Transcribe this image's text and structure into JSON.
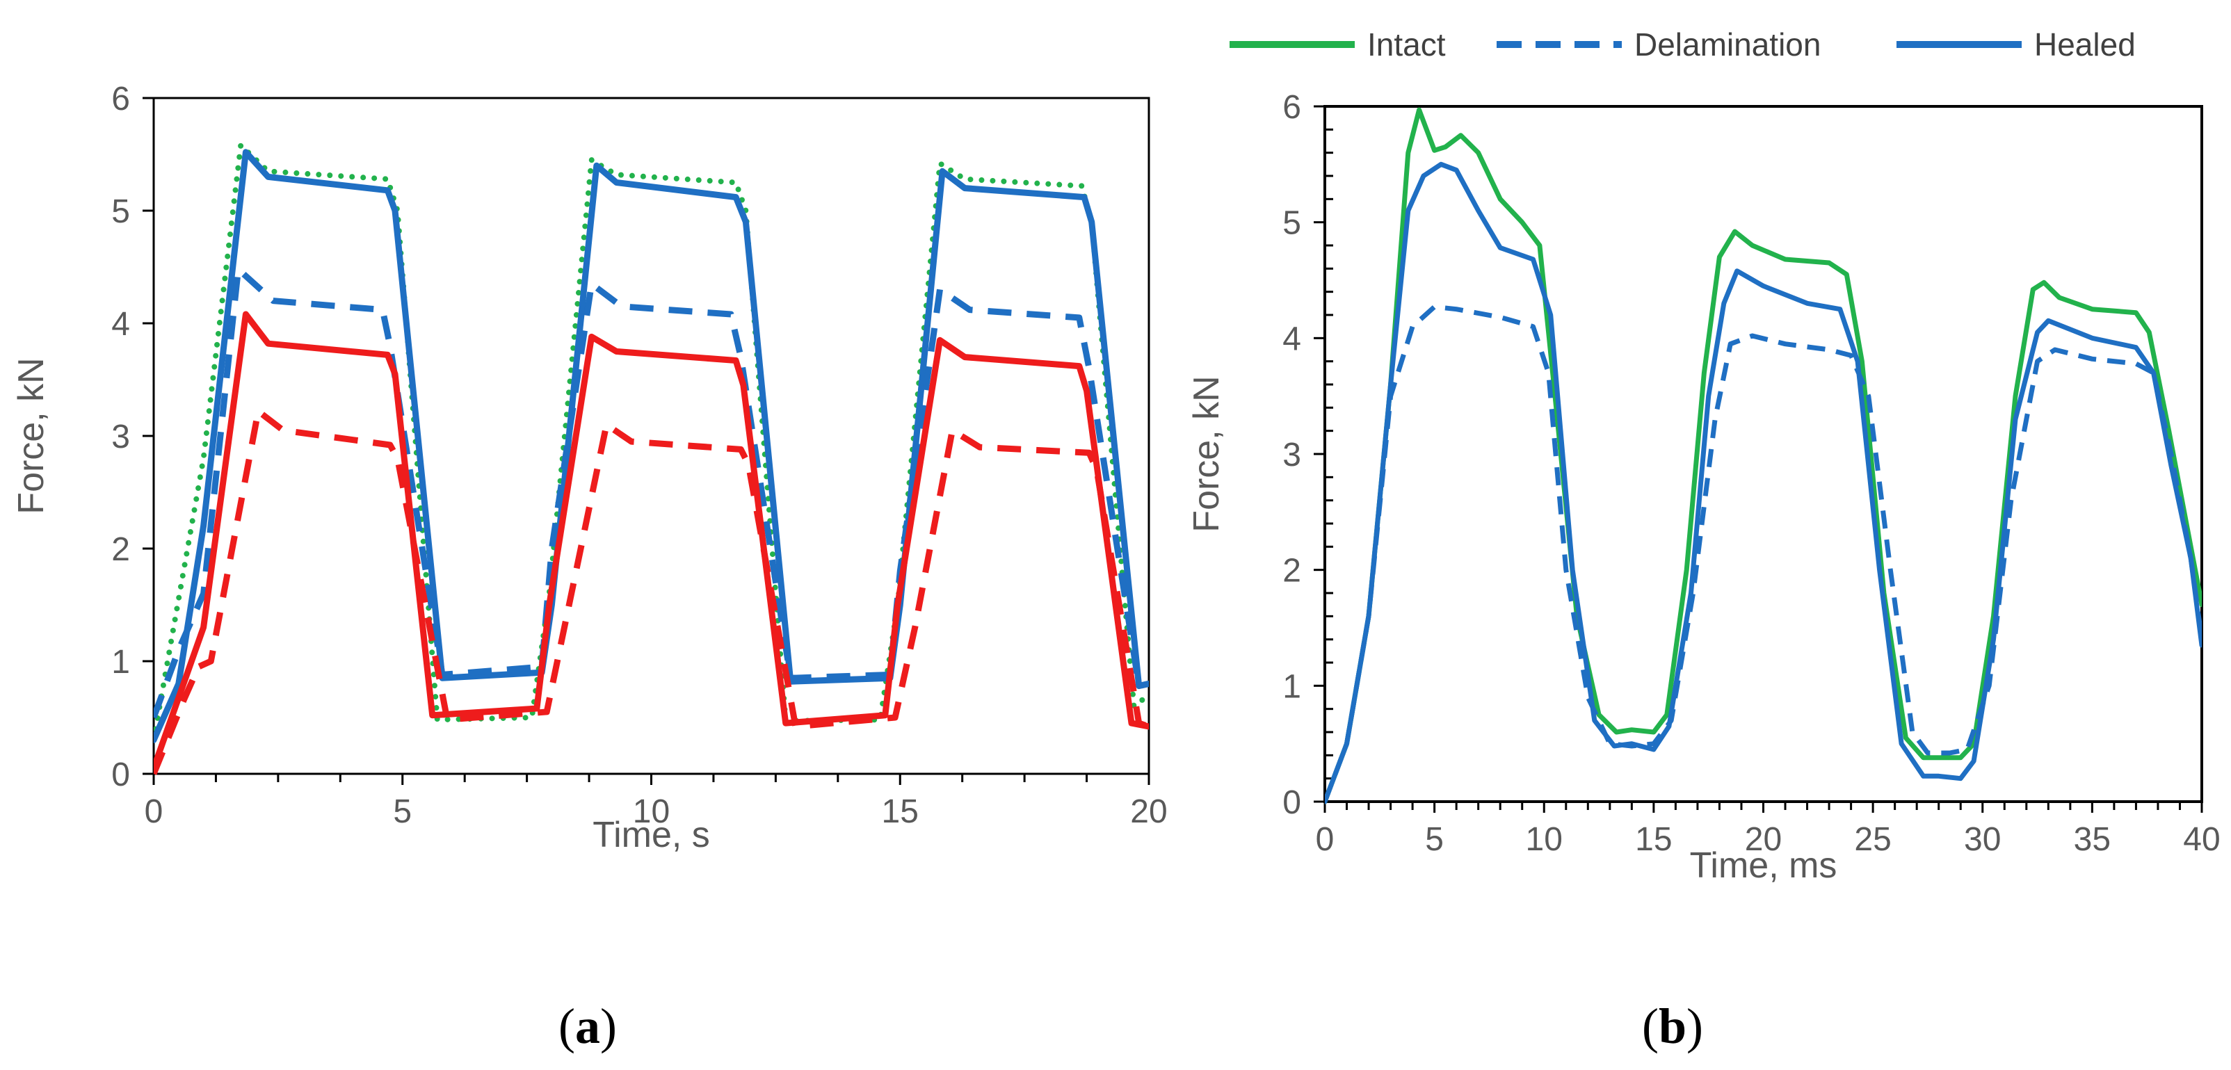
{
  "chart_data": [
    {
      "type": "line",
      "panel_label_prefix": "(",
      "panel_label_letter": "a",
      "panel_label_suffix": ")",
      "title": "",
      "xlabel": "Time, s",
      "ylabel": "Force, kN",
      "xlim": [
        0,
        20
      ],
      "ylim": [
        0,
        6
      ],
      "xticks": [
        0,
        5,
        10,
        15,
        20
      ],
      "yticks": [
        0,
        1,
        2,
        3,
        4,
        5,
        6
      ],
      "grid": false,
      "legend": "none",
      "series": [
        {
          "color": "#22b24c",
          "style": "dotted",
          "x": [
            0,
            1.0,
            1.75,
            2.3,
            4.7,
            4.9,
            5.7,
            7.6,
            7.95,
            8.8,
            9.3,
            11.7,
            11.9,
            12.7,
            14.6,
            14.95,
            15.8,
            16.3,
            18.65,
            18.85,
            19.7,
            20
          ],
          "y": [
            0.3,
            2.8,
            5.58,
            5.35,
            5.28,
            5.0,
            0.48,
            0.5,
            1.6,
            5.45,
            5.32,
            5.25,
            5.0,
            0.47,
            0.48,
            1.5,
            5.42,
            5.28,
            5.22,
            4.9,
            0.6,
            0.7
          ]
        },
        {
          "color": "#1f6fc3",
          "style": "solid",
          "x": [
            0,
            0.5,
            1.0,
            1.85,
            2.3,
            4.7,
            4.85,
            5.8,
            7.8,
            8.0,
            8.9,
            9.3,
            11.7,
            11.9,
            12.8,
            14.8,
            15.0,
            15.85,
            16.3,
            18.7,
            18.85,
            19.8,
            20
          ],
          "y": [
            0.3,
            0.8,
            2.2,
            5.52,
            5.3,
            5.18,
            5.0,
            0.85,
            0.9,
            1.5,
            5.4,
            5.25,
            5.12,
            4.9,
            0.82,
            0.85,
            1.5,
            5.35,
            5.2,
            5.12,
            4.9,
            0.78,
            0.8
          ]
        },
        {
          "color": "#1f6fc3",
          "style": "dashed",
          "x": [
            0,
            0.5,
            1.0,
            1.7,
            2.4,
            4.6,
            4.75,
            5.8,
            7.8,
            8.0,
            8.8,
            9.4,
            11.6,
            11.8,
            12.8,
            14.8,
            15.0,
            15.8,
            16.4,
            18.6,
            18.8,
            19.8,
            20
          ],
          "y": [
            0.5,
            1.1,
            1.6,
            4.48,
            4.2,
            4.12,
            3.8,
            0.88,
            0.95,
            2.0,
            4.35,
            4.15,
            4.08,
            3.7,
            0.85,
            0.88,
            1.8,
            4.3,
            4.12,
            4.05,
            3.6,
            0.78,
            0.8
          ]
        },
        {
          "color": "#ee1c1c",
          "style": "solid",
          "x": [
            0,
            1.0,
            1.85,
            2.3,
            4.7,
            4.85,
            5.6,
            7.7,
            7.95,
            8.8,
            9.3,
            11.7,
            11.85,
            12.7,
            14.7,
            14.95,
            15.8,
            16.3,
            18.6,
            18.75,
            19.65,
            20
          ],
          "y": [
            0.05,
            1.3,
            4.08,
            3.82,
            3.72,
            3.55,
            0.52,
            0.58,
            1.5,
            3.88,
            3.75,
            3.67,
            3.45,
            0.45,
            0.52,
            1.5,
            3.85,
            3.7,
            3.62,
            3.4,
            0.45,
            0.42
          ]
        },
        {
          "color": "#ee1c1c",
          "style": "dashed",
          "x": [
            0,
            0.6,
            0.9,
            1.15,
            2.1,
            2.6,
            4.75,
            4.9,
            5.9,
            7.9,
            8.3,
            9.1,
            9.6,
            11.8,
            11.95,
            12.9,
            14.9,
            15.3,
            16.05,
            16.6,
            18.8,
            18.95,
            19.8,
            20
          ],
          "y": [
            0.0,
            0.65,
            0.95,
            1.0,
            3.22,
            3.05,
            2.92,
            2.8,
            0.48,
            0.55,
            1.4,
            3.1,
            2.95,
            2.88,
            2.75,
            0.42,
            0.5,
            1.3,
            3.05,
            2.9,
            2.85,
            2.7,
            0.45,
            0.42
          ]
        }
      ]
    },
    {
      "type": "line",
      "panel_label_prefix": "(",
      "panel_label_letter": "b",
      "panel_label_suffix": ")",
      "title": "",
      "xlabel": "Time, ms",
      "ylabel": "Force, kN",
      "xlim": [
        0,
        40
      ],
      "ylim": [
        0,
        6
      ],
      "xticks": [
        0,
        5,
        10,
        15,
        20,
        25,
        30,
        35,
        40
      ],
      "yticks": [
        0,
        1,
        2,
        3,
        4,
        5,
        6
      ],
      "grid": false,
      "legend": "top",
      "series": [
        {
          "name": "Intact",
          "color": "#22b24c",
          "style": "solid",
          "x": [
            0,
            1,
            2,
            3,
            3.8,
            4.3,
            5.0,
            5.5,
            6.2,
            7.0,
            8.0,
            9.0,
            9.8,
            10.5,
            11.5,
            12.5,
            13.3,
            14.0,
            15.0,
            15.6,
            16.5,
            17.3,
            18.0,
            18.7,
            19.5,
            21.0,
            23.0,
            23.8,
            24.5,
            25.5,
            26.5,
            27.3,
            28.0,
            29.0,
            29.6,
            30.5,
            31.5,
            32.3,
            32.8,
            33.5,
            35.0,
            37.0,
            37.6,
            38.5,
            39.5,
            40.0
          ],
          "y": [
            0,
            0.5,
            1.6,
            3.6,
            5.6,
            5.97,
            5.62,
            5.65,
            5.75,
            5.6,
            5.2,
            5.0,
            4.8,
            3.5,
            1.6,
            0.75,
            0.6,
            0.62,
            0.6,
            0.75,
            2.0,
            3.7,
            4.7,
            4.92,
            4.8,
            4.68,
            4.65,
            4.55,
            3.8,
            1.8,
            0.55,
            0.38,
            0.38,
            0.38,
            0.5,
            1.6,
            3.5,
            4.42,
            4.48,
            4.35,
            4.25,
            4.22,
            4.05,
            3.2,
            2.2,
            1.7
          ]
        },
        {
          "name": "Delamination",
          "color": "#1f6fc3",
          "style": "dashed",
          "x": [
            0,
            1,
            2,
            3,
            4,
            5,
            6,
            8,
            9.5,
            10.2,
            11.0,
            12.0,
            13.0,
            14.0,
            15.0,
            15.8,
            16.8,
            17.8,
            18.5,
            19.5,
            21.0,
            23.0,
            24.0,
            24.8,
            25.8,
            26.8,
            27.5,
            28.5,
            29.3,
            30.3,
            31.3,
            32.5,
            33.3,
            35.0,
            37.0,
            37.8,
            38.6,
            39.5,
            40.0
          ],
          "y": [
            0,
            0.5,
            1.6,
            3.5,
            4.1,
            4.27,
            4.25,
            4.18,
            4.1,
            3.7,
            2.0,
            0.9,
            0.5,
            0.48,
            0.5,
            0.7,
            1.8,
            3.3,
            3.95,
            4.02,
            3.95,
            3.9,
            3.85,
            3.5,
            2.0,
            0.6,
            0.42,
            0.42,
            0.45,
            1.0,
            2.6,
            3.8,
            3.9,
            3.82,
            3.78,
            3.7,
            3.0,
            2.1,
            1.4
          ]
        },
        {
          "name": "Healed",
          "color": "#1f6fc3",
          "style": "solid",
          "x": [
            0,
            1,
            2,
            3,
            3.8,
            4.5,
            5.3,
            6.0,
            7.0,
            8.0,
            9.5,
            10.3,
            11.3,
            12.3,
            13.2,
            14.0,
            15.0,
            15.7,
            16.7,
            17.5,
            18.2,
            18.8,
            20.0,
            22.0,
            23.5,
            24.3,
            25.3,
            26.3,
            27.3,
            28.0,
            29.0,
            29.6,
            30.5,
            31.5,
            32.5,
            33.0,
            35.0,
            37.0,
            37.8,
            38.6,
            39.5,
            40.0
          ],
          "y": [
            0,
            0.5,
            1.6,
            3.6,
            5.1,
            5.4,
            5.5,
            5.45,
            5.1,
            4.78,
            4.68,
            4.2,
            2.0,
            0.7,
            0.48,
            0.5,
            0.45,
            0.65,
            1.8,
            3.5,
            4.3,
            4.58,
            4.45,
            4.3,
            4.25,
            3.8,
            2.0,
            0.5,
            0.22,
            0.22,
            0.2,
            0.35,
            1.4,
            3.3,
            4.05,
            4.15,
            4.0,
            3.92,
            3.7,
            2.9,
            2.1,
            1.35
          ]
        }
      ]
    }
  ]
}
